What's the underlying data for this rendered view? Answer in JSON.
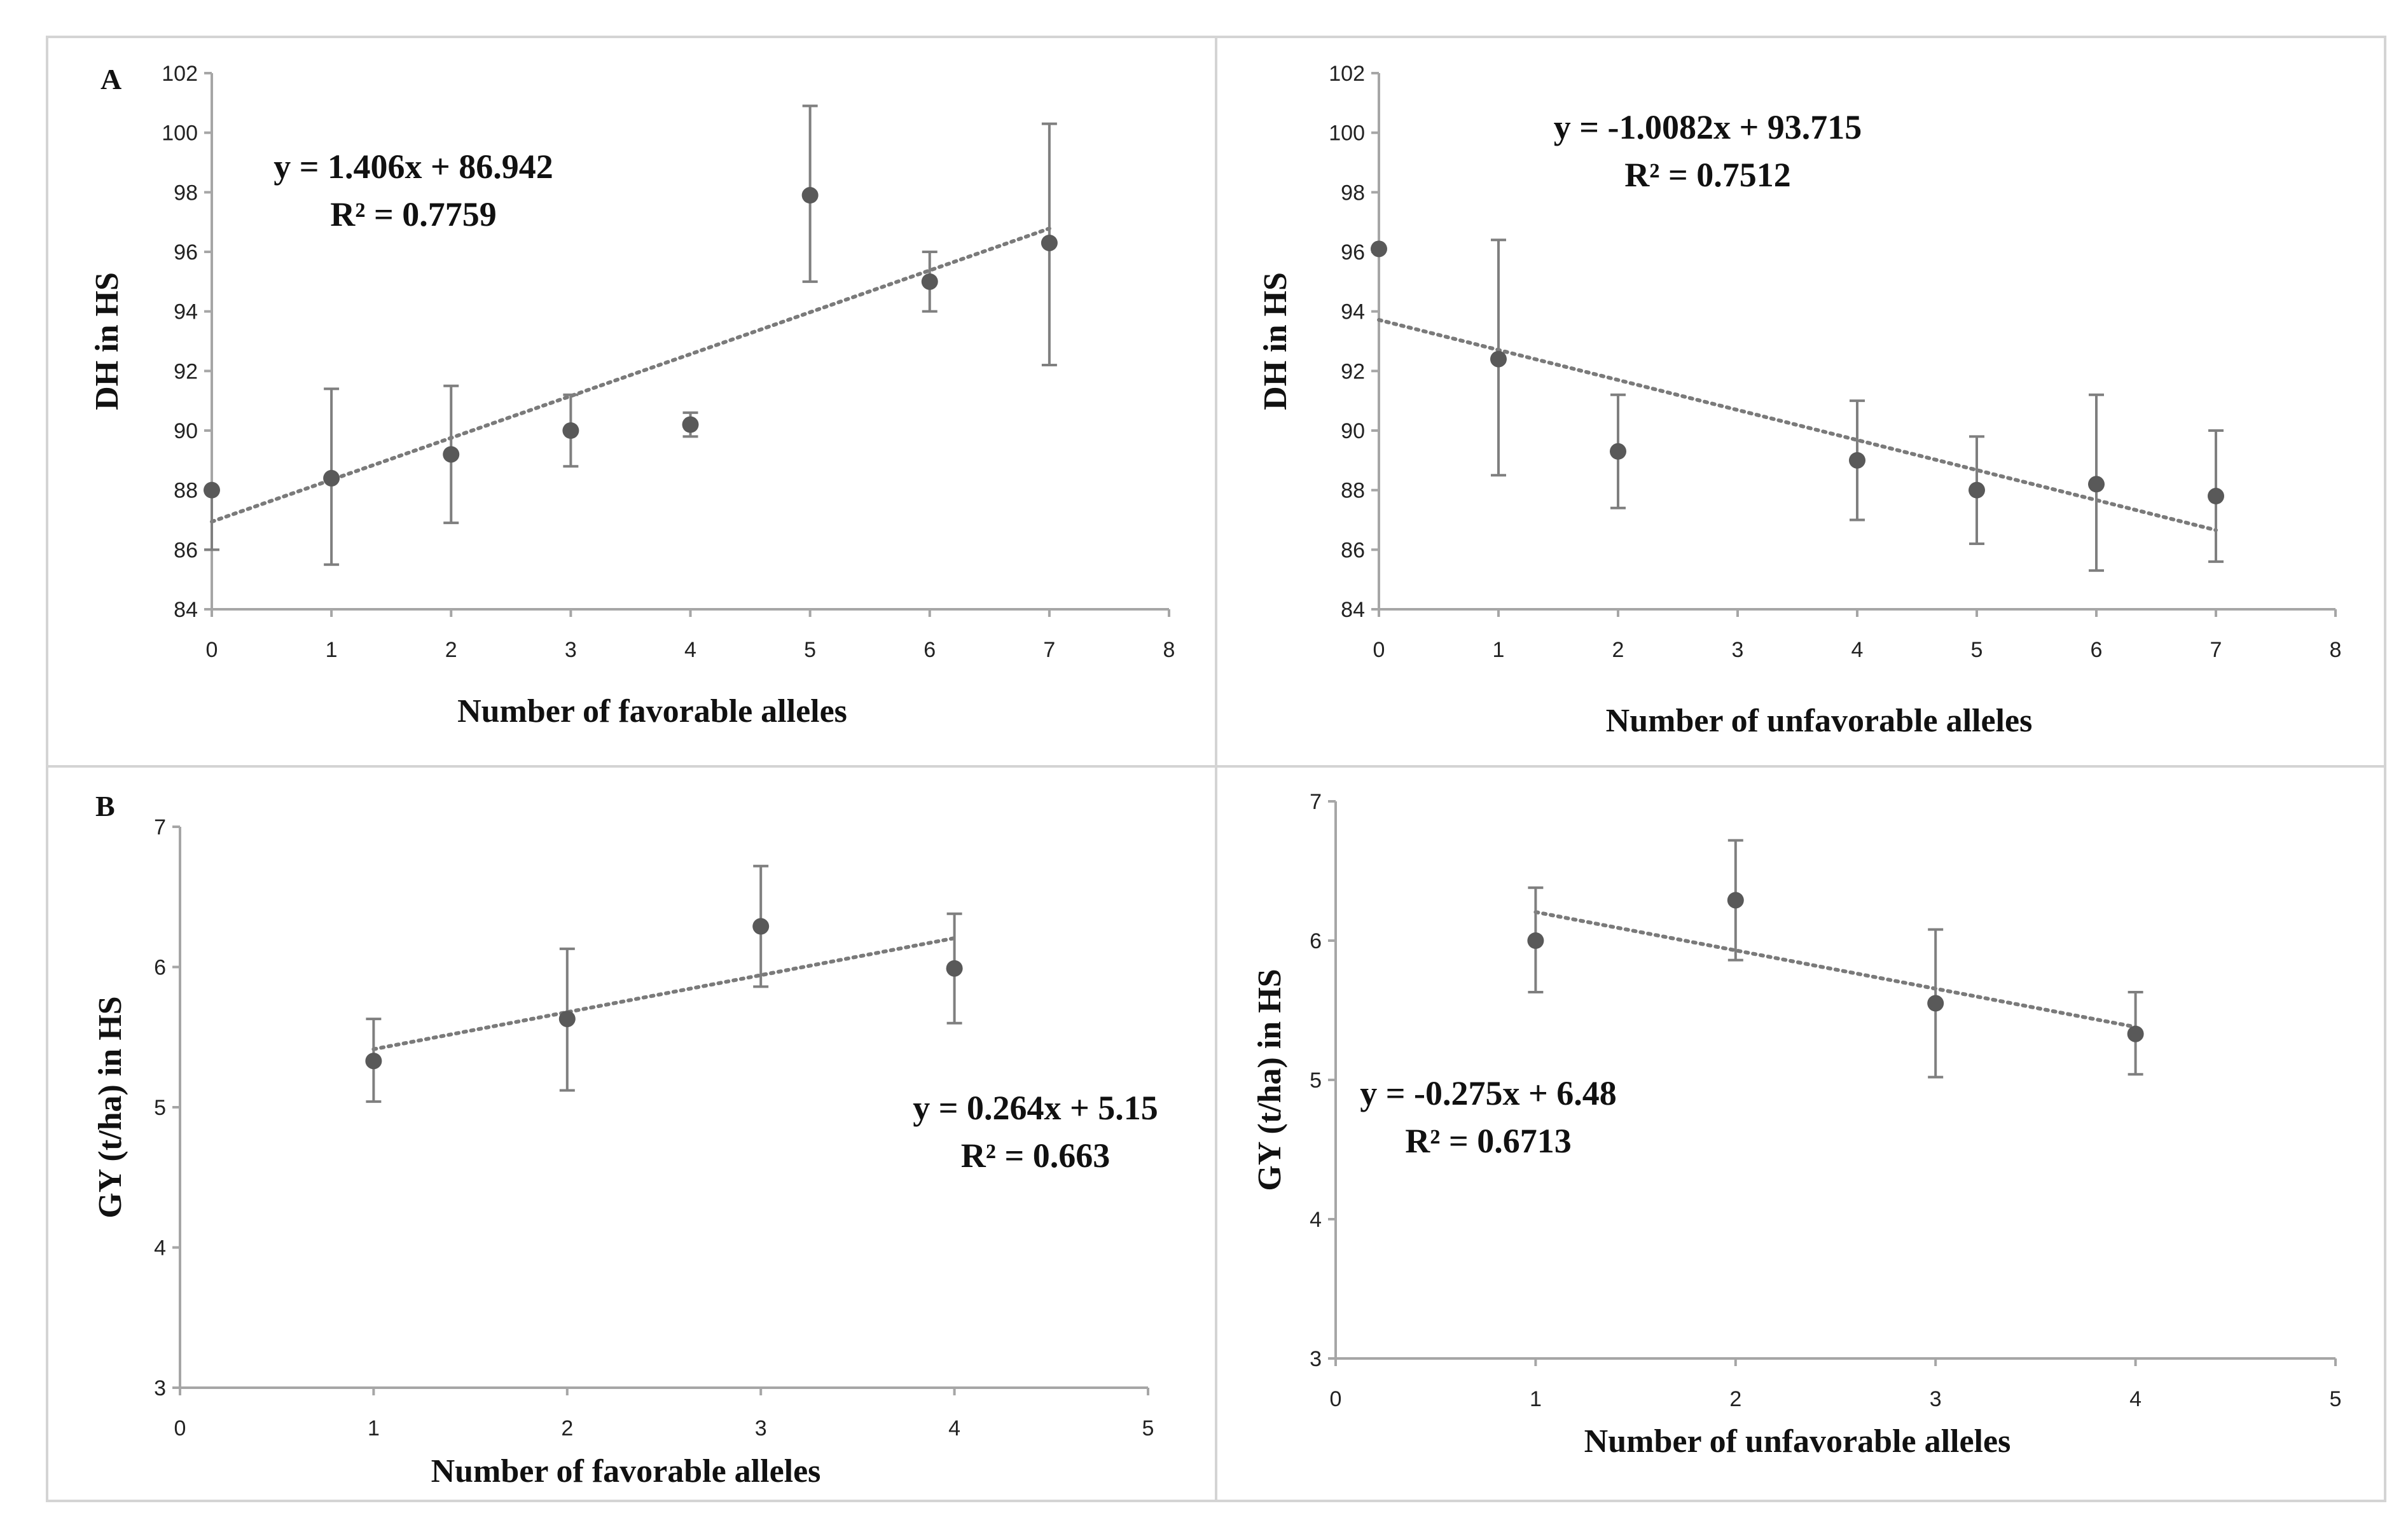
{
  "panel_labels": [
    "A",
    "B"
  ],
  "chart_data": [
    {
      "type": "scatter",
      "panel_label": "A",
      "xlabel": "Number of favorable alleles",
      "ylabel": "DH in HS",
      "xlim": [
        0,
        8
      ],
      "ylim": [
        84,
        102
      ],
      "x_ticks": [
        0,
        1,
        2,
        3,
        4,
        5,
        6,
        7,
        8
      ],
      "y_ticks": [
        84,
        86,
        88,
        90,
        92,
        94,
        96,
        98,
        100,
        102
      ],
      "points": [
        {
          "x": 0,
          "y": 88.0,
          "err_low": 86.0,
          "err_high": 88.0
        },
        {
          "x": 1,
          "y": 88.4,
          "err_low": 85.5,
          "err_high": 91.4
        },
        {
          "x": 2,
          "y": 89.2,
          "err_low": 86.9,
          "err_high": 91.5
        },
        {
          "x": 3,
          "y": 90.0,
          "err_low": 88.8,
          "err_high": 91.2
        },
        {
          "x": 4,
          "y": 90.2,
          "err_low": 89.8,
          "err_high": 90.6
        },
        {
          "x": 5,
          "y": 97.9,
          "err_low": 95.0,
          "err_high": 100.9
        },
        {
          "x": 6,
          "y": 95.0,
          "err_low": 94.0,
          "err_high": 96.0
        },
        {
          "x": 7,
          "y": 96.3,
          "err_low": 92.2,
          "err_high": 100.3
        }
      ],
      "trendline": {
        "slope": 1.406,
        "intercept": 86.942,
        "x_range": [
          0,
          7
        ]
      },
      "equation": "y = 1.406x + 86.942",
      "r_squared": "R² = 0.7759",
      "grid": false,
      "legend": "none"
    },
    {
      "type": "scatter",
      "panel_label": "",
      "xlabel": "Number of unfavorable alleles",
      "ylabel": "DH in HS",
      "xlim": [
        0,
        8
      ],
      "ylim": [
        84,
        102
      ],
      "x_ticks": [
        0,
        1,
        2,
        3,
        4,
        5,
        6,
        7,
        8
      ],
      "y_ticks": [
        84,
        86,
        88,
        90,
        92,
        94,
        96,
        98,
        100,
        102
      ],
      "points": [
        {
          "x": 0,
          "y": 96.1,
          "err_low": 96.1,
          "err_high": 96.1
        },
        {
          "x": 1,
          "y": 92.4,
          "err_low": 88.5,
          "err_high": 96.4
        },
        {
          "x": 2,
          "y": 89.3,
          "err_low": 87.4,
          "err_high": 91.2
        },
        {
          "x": 4,
          "y": 89.0,
          "err_low": 87.0,
          "err_high": 91.0
        },
        {
          "x": 5,
          "y": 88.0,
          "err_low": 86.2,
          "err_high": 89.8
        },
        {
          "x": 6,
          "y": 88.2,
          "err_low": 85.3,
          "err_high": 91.2
        },
        {
          "x": 7,
          "y": 87.8,
          "err_low": 85.6,
          "err_high": 90.0
        }
      ],
      "trendline": {
        "slope": -1.0082,
        "intercept": 93.715,
        "x_range": [
          0,
          7
        ]
      },
      "equation": "y = -1.0082x + 93.715",
      "r_squared": "R² = 0.7512",
      "grid": false,
      "legend": "none"
    },
    {
      "type": "scatter",
      "panel_label": "B",
      "xlabel": "Number of favorable alleles",
      "ylabel": "GY (t/ha) in HS",
      "xlim": [
        0,
        5
      ],
      "ylim": [
        3,
        7
      ],
      "x_ticks": [
        0,
        1,
        2,
        3,
        4,
        5
      ],
      "y_ticks": [
        3,
        4,
        5,
        6,
        7
      ],
      "points": [
        {
          "x": 1,
          "y": 5.33,
          "err_low": 5.04,
          "err_high": 5.63
        },
        {
          "x": 2,
          "y": 5.63,
          "err_low": 5.12,
          "err_high": 6.13
        },
        {
          "x": 3,
          "y": 6.29,
          "err_low": 5.86,
          "err_high": 6.72
        },
        {
          "x": 4,
          "y": 5.99,
          "err_low": 5.6,
          "err_high": 6.38
        }
      ],
      "trendline": {
        "slope": 0.264,
        "intercept": 5.15,
        "x_range": [
          1,
          4
        ]
      },
      "equation": "y = 0.264x + 5.15",
      "r_squared": "R² = 0.663",
      "grid": false,
      "legend": "none"
    },
    {
      "type": "scatter",
      "panel_label": "",
      "xlabel": "Number of unfavorable alleles",
      "ylabel": "GY (t/ha) in HS",
      "xlim": [
        0,
        5
      ],
      "ylim": [
        3,
        7
      ],
      "x_ticks": [
        0,
        1,
        2,
        3,
        4,
        5
      ],
      "y_ticks": [
        3,
        4,
        5,
        6,
        7
      ],
      "points": [
        {
          "x": 1,
          "y": 6.0,
          "err_low": 5.63,
          "err_high": 6.38
        },
        {
          "x": 2,
          "y": 6.29,
          "err_low": 5.86,
          "err_high": 6.72
        },
        {
          "x": 3,
          "y": 5.55,
          "err_low": 5.02,
          "err_high": 6.08
        },
        {
          "x": 4,
          "y": 5.33,
          "err_low": 5.04,
          "err_high": 5.63
        }
      ],
      "trendline": {
        "slope": -0.275,
        "intercept": 6.48,
        "x_range": [
          1,
          4
        ]
      },
      "equation": "y = -0.275x + 6.48",
      "r_squared": "R² = 0.6713",
      "grid": false,
      "legend": "none"
    }
  ]
}
